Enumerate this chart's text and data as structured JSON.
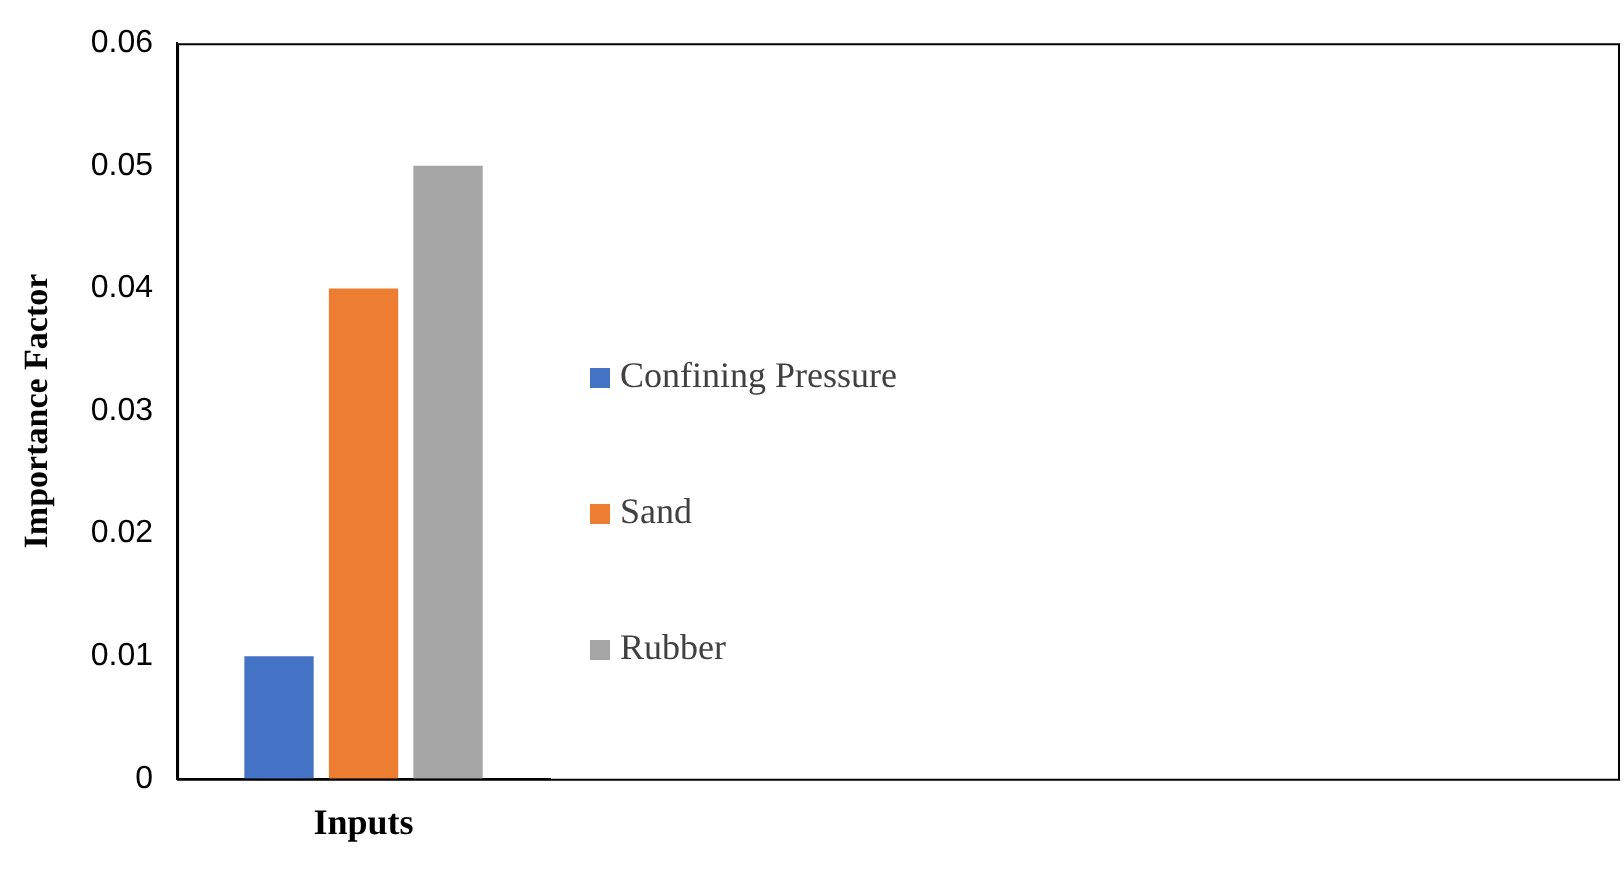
{
  "chart_data": {
    "type": "bar",
    "ylabel": "Importance Factor",
    "categories": [
      "Inputs"
    ],
    "series": [
      {
        "name": "Confining Pressure",
        "color": "#4472c4",
        "values": [
          0.01
        ]
      },
      {
        "name": "Sand",
        "color": "#ed7d31",
        "values": [
          0.04
        ]
      },
      {
        "name": "Rubber",
        "color": "#a5a5a5",
        "values": [
          0.05
        ]
      }
    ],
    "ylim": [
      0,
      0.06
    ],
    "yticks": [
      0,
      0.01,
      0.02,
      0.03,
      0.04,
      0.05,
      0.06
    ],
    "grid": false,
    "legend": "right"
  }
}
